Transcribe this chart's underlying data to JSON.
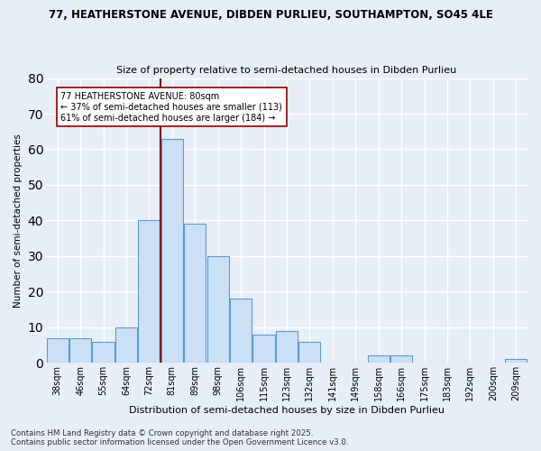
{
  "title1": "77, HEATHERSTONE AVENUE, DIBDEN PURLIEU, SOUTHAMPTON, SO45 4LE",
  "title2": "Size of property relative to semi-detached houses in Dibden Purlieu",
  "xlabel": "Distribution of semi-detached houses by size in Dibden Purlieu",
  "ylabel": "Number of semi-detached properties",
  "footnote1": "Contains HM Land Registry data © Crown copyright and database right 2025.",
  "footnote2": "Contains public sector information licensed under the Open Government Licence v3.0.",
  "annotation_line1": "77 HEATHERSTONE AVENUE: 80sqm",
  "annotation_line2": "← 37% of semi-detached houses are smaller (113)",
  "annotation_line3": "61% of semi-detached houses are larger (184) →",
  "bar_labels": [
    "38sqm",
    "46sqm",
    "55sqm",
    "64sqm",
    "72sqm",
    "81sqm",
    "89sqm",
    "98sqm",
    "106sqm",
    "115sqm",
    "123sqm",
    "132sqm",
    "141sqm",
    "149sqm",
    "158sqm",
    "166sqm",
    "175sqm",
    "183sqm",
    "192sqm",
    "200sqm",
    "209sqm"
  ],
  "bar_values": [
    7,
    7,
    6,
    10,
    40,
    63,
    39,
    30,
    18,
    8,
    9,
    6,
    0,
    0,
    2,
    2,
    0,
    0,
    0,
    0,
    1
  ],
  "vline_x": 5,
  "bar_color": "#cce0f5",
  "bar_edge_color": "#5b9bd5",
  "vline_color": "#8b0000",
  "bg_color": "#e8eef7",
  "grid_color": "#ffffff",
  "ylim": [
    0,
    80
  ],
  "yticks": [
    0,
    10,
    20,
    30,
    40,
    50,
    60,
    70,
    80
  ]
}
